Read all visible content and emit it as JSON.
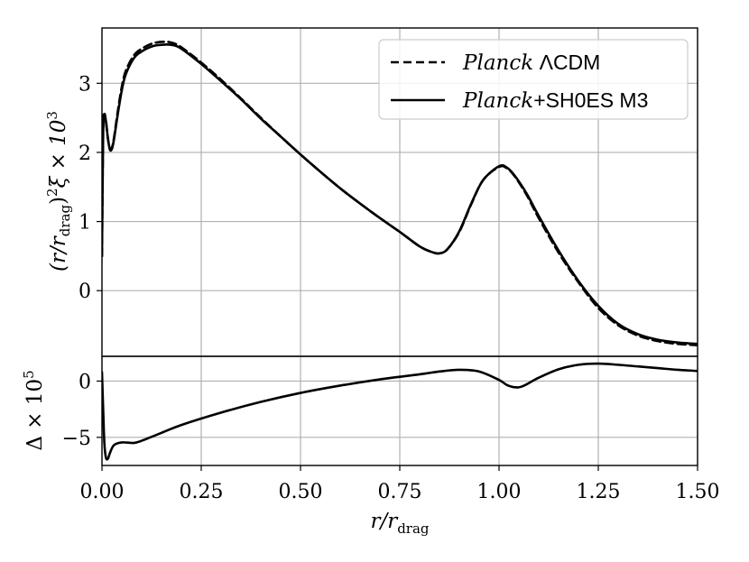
{
  "chart_data": [
    {
      "type": "line",
      "panel": "top",
      "ylabel": "(r/r_drag)^2 ξ × 10^3",
      "xlim": [
        0.0,
        1.5
      ],
      "ylim": [
        -0.95,
        3.8
      ],
      "yticks": [
        "0",
        "1",
        "2",
        "3"
      ],
      "grid": true,
      "legend_position": "top-right",
      "x": [
        0.0,
        0.003,
        0.006,
        0.01,
        0.015,
        0.02,
        0.025,
        0.03,
        0.04,
        0.05,
        0.06,
        0.08,
        0.1,
        0.13,
        0.16,
        0.18,
        0.2,
        0.25,
        0.3,
        0.35,
        0.4,
        0.45,
        0.5,
        0.55,
        0.6,
        0.65,
        0.7,
        0.75,
        0.8,
        0.83,
        0.85,
        0.87,
        0.9,
        0.93,
        0.96,
        1.0,
        1.02,
        1.04,
        1.07,
        1.1,
        1.15,
        1.2,
        1.25,
        1.3,
        1.35,
        1.4,
        1.45,
        1.5
      ],
      "series": [
        {
          "name": "Planck ΛCDM",
          "style": "dashed",
          "values": [
            0.5,
            2.3,
            2.55,
            2.45,
            2.2,
            2.05,
            2.07,
            2.2,
            2.6,
            2.95,
            3.18,
            3.4,
            3.5,
            3.58,
            3.6,
            3.58,
            3.52,
            3.3,
            3.05,
            2.78,
            2.5,
            2.23,
            1.97,
            1.72,
            1.48,
            1.26,
            1.05,
            0.85,
            0.64,
            0.56,
            0.54,
            0.6,
            0.85,
            1.25,
            1.6,
            1.79,
            1.77,
            1.65,
            1.38,
            1.05,
            0.55,
            0.12,
            -0.25,
            -0.5,
            -0.65,
            -0.73,
            -0.77,
            -0.79
          ]
        },
        {
          "name": "Planck+SH0ES M3",
          "style": "solid",
          "values": [
            0.5,
            2.3,
            2.55,
            2.45,
            2.2,
            2.04,
            2.05,
            2.18,
            2.56,
            2.9,
            3.13,
            3.36,
            3.46,
            3.54,
            3.56,
            3.55,
            3.5,
            3.28,
            3.03,
            2.77,
            2.49,
            2.23,
            1.97,
            1.72,
            1.48,
            1.26,
            1.05,
            0.85,
            0.64,
            0.56,
            0.54,
            0.6,
            0.86,
            1.26,
            1.6,
            1.8,
            1.78,
            1.66,
            1.4,
            1.08,
            0.58,
            0.14,
            -0.22,
            -0.48,
            -0.63,
            -0.71,
            -0.75,
            -0.77
          ]
        }
      ]
    },
    {
      "type": "line",
      "panel": "bottom",
      "xlabel": "r/r_drag",
      "ylabel": "Δ × 10^5",
      "xlim": [
        0.0,
        1.5
      ],
      "ylim": [
        -7.5,
        2.2
      ],
      "yticks": [
        "−5",
        "0"
      ],
      "xticks": [
        "0.00",
        "0.25",
        "0.50",
        "0.75",
        "1.00",
        "1.25",
        "1.50"
      ],
      "grid": true,
      "x": [
        0.0,
        0.003,
        0.006,
        0.01,
        0.015,
        0.02,
        0.03,
        0.05,
        0.08,
        0.1,
        0.15,
        0.2,
        0.3,
        0.4,
        0.5,
        0.6,
        0.7,
        0.8,
        0.85,
        0.9,
        0.95,
        1.0,
        1.02,
        1.04,
        1.06,
        1.1,
        1.15,
        1.2,
        1.25,
        1.3,
        1.35,
        1.4,
        1.45,
        1.5
      ],
      "series": [
        {
          "name": "",
          "style": "solid",
          "values": [
            0.8,
            -2.5,
            -5.5,
            -6.8,
            -6.9,
            -6.4,
            -5.7,
            -5.45,
            -5.5,
            -5.3,
            -4.6,
            -3.9,
            -2.8,
            -1.85,
            -1.05,
            -0.4,
            0.15,
            0.6,
            0.85,
            1.0,
            0.85,
            0.1,
            -0.35,
            -0.55,
            -0.45,
            0.3,
            1.05,
            1.45,
            1.55,
            1.45,
            1.3,
            1.15,
            1.0,
            0.9
          ]
        }
      ]
    }
  ],
  "legend": {
    "items": [
      {
        "label_italic": "Planck",
        "label_rest": " ΛCDM",
        "style": "dashed"
      },
      {
        "label_italic": "Planck",
        "label_rest": "+SH0ES M3",
        "style": "solid"
      }
    ]
  },
  "labels": {
    "top_ylabel_parts": [
      "(r/r",
      "drag",
      ")",
      "2",
      "ξ × 10",
      "3"
    ],
    "bottom_ylabel_parts": [
      "Δ × 10",
      "5"
    ],
    "xlabel_parts": [
      "r/r",
      "drag"
    ]
  }
}
